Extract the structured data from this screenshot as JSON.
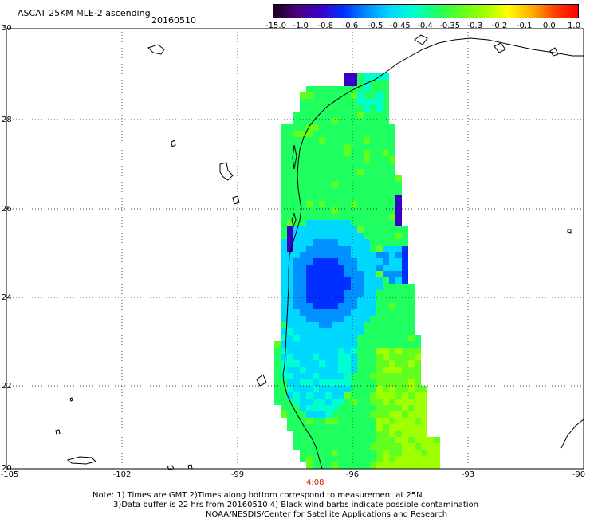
{
  "header": {
    "title": "ASCAT 25KM MLE-2 ascending",
    "date": "20160510"
  },
  "colorbar": {
    "labels": [
      "-15.0",
      "-1.0",
      "-0.8",
      "-0.6",
      "-0.5",
      "-0.45",
      "-0.4",
      "-0.35",
      "-0.3",
      "-0.2",
      "-0.1",
      "0.0",
      "1.0"
    ],
    "colors": [
      "#1a0020",
      "#4a0080",
      "#3a00c8",
      "#0030ff",
      "#0090ff",
      "#00d8ff",
      "#00ffd0",
      "#20ff60",
      "#60ff20",
      "#a0ff00",
      "#ffff00",
      "#ffb000",
      "#ff4000",
      "#ff0000"
    ]
  },
  "axes": {
    "lat_labels": [
      "30",
      "28",
      "26",
      "24",
      "22",
      "20"
    ],
    "lon_labels": [
      "-105",
      "-102",
      "-99",
      "-96",
      "-93",
      "-90"
    ]
  },
  "time_label": "4:08",
  "notes": {
    "line1": "Note: 1) Times are GMT 2)Times along bottom correspond to measurement at 25N",
    "line2": "3)Data buffer is 22 hrs from 20160510 4) Black wind barbs indicate possible contamination",
    "line3": "NOAA/NESDIS/Center for Satellite Applications and Research"
  }
}
